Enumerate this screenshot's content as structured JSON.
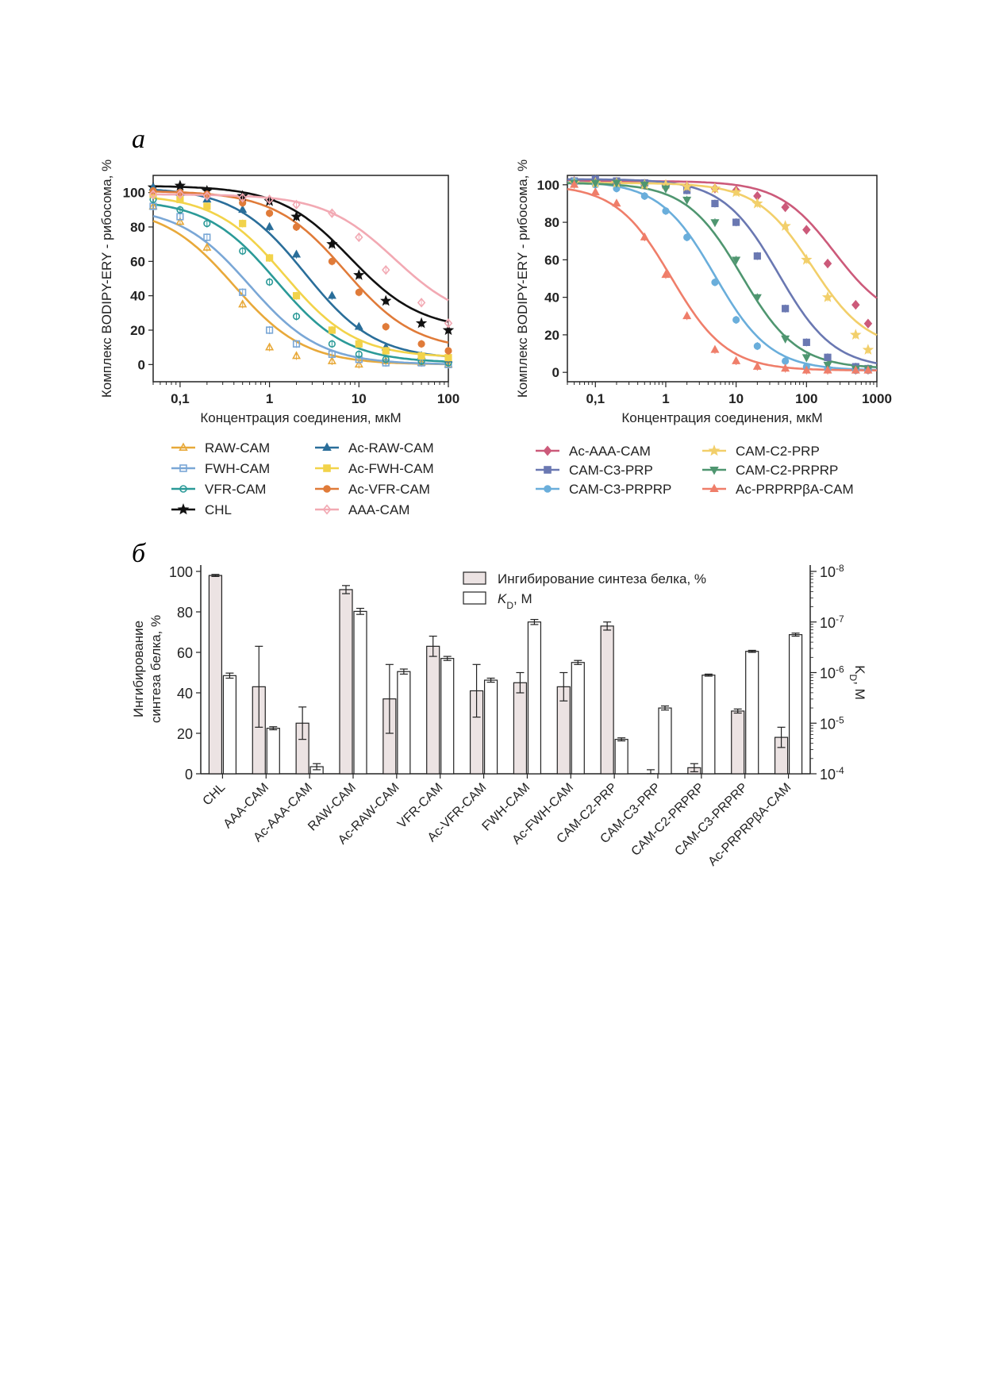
{
  "figure": {
    "panel_a_label": "a",
    "panel_b_label": "б"
  },
  "chart_data": [
    {
      "type": "line",
      "xscale": "log",
      "xlim": [
        0.05,
        100
      ],
      "ylim": [
        -10,
        110
      ],
      "xticks": [
        "0,1",
        "1",
        "10",
        "100"
      ],
      "yticks": [
        "0",
        "20",
        "40",
        "60",
        "80",
        "100"
      ],
      "xlabel": "Концентрация соединения, мкМ",
      "ylabel": "Комплекс BODIPY-ERY - рибосома, %",
      "x": [
        0.05,
        0.1,
        0.2,
        0.5,
        1,
        2,
        5,
        10,
        20,
        50,
        100
      ],
      "legend_position": "bottom",
      "series": [
        {
          "name": "RAW-CAM",
          "color": "#e8a93a",
          "marker": "triangle-open",
          "ic50": 0.4,
          "values": [
            92,
            83,
            68,
            35,
            10,
            5,
            2,
            0,
            2,
            1,
            0
          ]
        },
        {
          "name": "FWH-CAM",
          "color": "#7aa7d6",
          "marker": "square-open",
          "ic50": 0.6,
          "values": [
            92,
            86,
            74,
            42,
            20,
            12,
            6,
            3,
            1,
            1,
            0
          ]
        },
        {
          "name": "VFR-CAM",
          "color": "#2b9a98",
          "marker": "circle-open",
          "ic50": 1.2,
          "values": [
            96,
            90,
            82,
            66,
            48,
            28,
            12,
            6,
            3,
            2,
            1
          ]
        },
        {
          "name": "CHL",
          "color": "#111111",
          "marker": "star",
          "ic50": 8,
          "values": [
            103,
            104,
            101,
            98,
            95,
            86,
            70,
            52,
            37,
            24,
            20
          ]
        },
        {
          "name": "Ac-RAW-CAM",
          "color": "#2a6e9a",
          "marker": "triangle",
          "ic50": 2.5,
          "values": [
            103,
            100,
            96,
            90,
            80,
            64,
            40,
            22,
            10,
            5,
            3
          ]
        },
        {
          "name": "Ac-FWH-CAM",
          "color": "#f2d34a",
          "marker": "square",
          "ic50": 1.5,
          "values": [
            99,
            96,
            92,
            82,
            62,
            40,
            20,
            12,
            8,
            5,
            4
          ]
        },
        {
          "name": "Ac-VFR-CAM",
          "color": "#e07b39",
          "marker": "circle",
          "ic50": 7,
          "values": [
            101,
            100,
            99,
            94,
            88,
            80,
            60,
            42,
            22,
            12,
            8
          ]
        },
        {
          "name": "AAA-CAM",
          "color": "#f2a9b3",
          "marker": "diamond-open",
          "ic50": 25,
          "values": [
            99,
            99,
            98,
            97,
            96,
            93,
            88,
            74,
            55,
            36,
            24
          ]
        }
      ]
    },
    {
      "type": "line",
      "xscale": "log",
      "xlim": [
        0.04,
        1000
      ],
      "ylim": [
        -5,
        105
      ],
      "xticks": [
        "0,1",
        "1",
        "10",
        "100",
        "1000"
      ],
      "yticks": [
        "0",
        "20",
        "40",
        "60",
        "80",
        "100"
      ],
      "xlabel": "Концентрация соединения, мкМ",
      "ylabel": "Комплекс BODIPY-ERY - рибосома, %",
      "x": [
        0.05,
        0.1,
        0.2,
        0.5,
        1,
        2,
        5,
        10,
        20,
        50,
        100,
        200,
        500,
        750
      ],
      "legend_position": "bottom",
      "series": [
        {
          "name": "Ac-AAA-CAM",
          "color": "#cc5a7a",
          "marker": "diamond",
          "ic50": 250,
          "values": [
            102,
            102,
            101,
            100,
            100,
            99,
            98,
            97,
            94,
            88,
            76,
            58,
            36,
            26
          ]
        },
        {
          "name": "CAM-C3-PRP",
          "color": "#6a78b2",
          "marker": "square",
          "ic50": 40,
          "values": [
            102,
            103,
            102,
            101,
            100,
            97,
            90,
            80,
            62,
            34,
            16,
            8,
            3,
            2
          ]
        },
        {
          "name": "CAM-C3-PRPRP",
          "color": "#6aaedb",
          "marker": "circle",
          "ic50": 5,
          "values": [
            102,
            100,
            98,
            94,
            86,
            72,
            48,
            28,
            14,
            6,
            3,
            2,
            1,
            1
          ]
        },
        {
          "name": "CAM-C2-PRP",
          "color": "#f2cf6a",
          "marker": "star",
          "ic50": 120,
          "values": [
            101,
            101,
            101,
            100,
            100,
            99,
            98,
            96,
            90,
            78,
            60,
            40,
            20,
            12
          ]
        },
        {
          "name": "CAM-C2-PRPRP",
          "color": "#4f9670",
          "marker": "triangle-down",
          "ic50": 12,
          "values": [
            101,
            101,
            101,
            100,
            98,
            92,
            80,
            60,
            40,
            18,
            8,
            4,
            2,
            2
          ]
        },
        {
          "name": "Ac-PRPRPβA-CAM",
          "color": "#ef7e6a",
          "marker": "triangle",
          "ic50": 1.2,
          "values": [
            100,
            96,
            90,
            72,
            52,
            30,
            12,
            6,
            3,
            2,
            1,
            1,
            1,
            1
          ]
        }
      ]
    },
    {
      "type": "bar",
      "categories": [
        "CHL",
        "AAA-CAM",
        "Ac-AAA-CAM",
        "RAW-CAM",
        "Ac-RAW-CAM",
        "VFR-CAM",
        "Ac-VFR-CAM",
        "FWH-CAM",
        "Ac-FWH-CAM",
        "CAM-C2-PRP",
        "CAM-C3-PRP",
        "CAM-C2-PRPRP",
        "CAM-C3-PRPRP",
        "Ac-PRPRPβA-CAM"
      ],
      "ylabel_line1": "Ингибирование",
      "ylabel_line2": "синтеза белка, %",
      "ylim": [
        0,
        100
      ],
      "yticks": [
        "0",
        "20",
        "40",
        "60",
        "80",
        "100"
      ],
      "y2label": "K",
      "y2label_sub": "D",
      "y2label_unit": ", M",
      "y2scale": "log",
      "y2ticks": [
        {
          "base": "10",
          "exp": "-8"
        },
        {
          "base": "10",
          "exp": "-7"
        },
        {
          "base": "10",
          "exp": "-6"
        },
        {
          "base": "10",
          "exp": "-5"
        },
        {
          "base": "10",
          "exp": "-4"
        }
      ],
      "y2lim_log10": [
        -4,
        -8
      ],
      "legend_position": "top-right",
      "series": [
        {
          "name": "Ингибирование синтеза белка, %",
          "color": "#ece3e3",
          "axis": "left",
          "values": [
            98,
            43,
            25,
            91,
            37,
            63,
            41,
            45,
            43,
            73,
            0,
            3,
            31,
            18
          ],
          "errors": [
            0.5,
            20,
            8,
            2,
            17,
            5,
            13,
            5,
            7,
            2,
            2,
            2,
            1,
            5
          ]
        },
        {
          "name_main": "K",
          "name_sub": "D",
          "name_unit": ", M",
          "color": "#ffffff",
          "axis": "right",
          "kd_log10": [
            -5.94,
            -4.9,
            -4.14,
            -7.21,
            -6.02,
            -6.28,
            -5.85,
            -7.0,
            -6.2,
            -4.68,
            -5.3,
            -5.95,
            -6.42,
            -6.75
          ],
          "errors_log10": [
            0.05,
            0.03,
            0.06,
            0.06,
            0.05,
            0.04,
            0.04,
            0.05,
            0.04,
            0.03,
            0.04,
            0.02,
            0.02,
            0.03
          ]
        }
      ]
    }
  ]
}
